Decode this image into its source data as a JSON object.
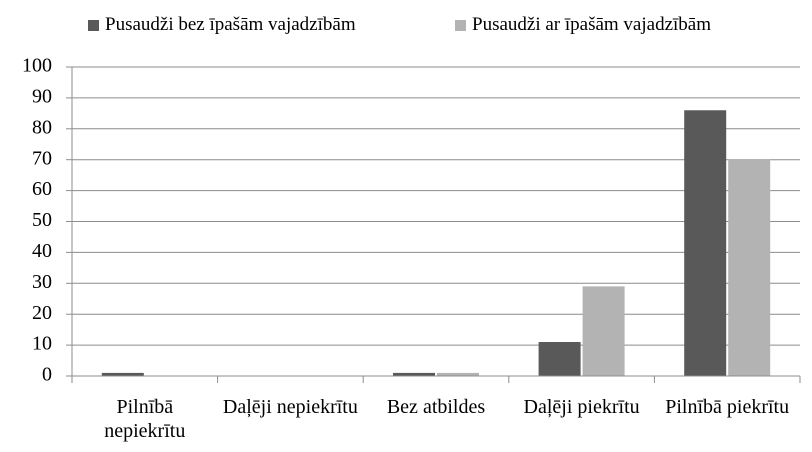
{
  "chart_data": {
    "type": "bar",
    "categories": [
      "Pilnībā nepiekrītu",
      "Daļēji nepiekrītu",
      "Bez atbildes",
      "Daļēji piekrītu",
      "Pilnībā piekrītu"
    ],
    "series": [
      {
        "name": "Pusaudži bez īpašām vajadzībām",
        "color": "#595959",
        "values": [
          1,
          0,
          1,
          11,
          86
        ]
      },
      {
        "name": "Pusaudži ar īpašām vajadzībām",
        "color": "#b3b3b3",
        "values": [
          0,
          0,
          1,
          29,
          70
        ]
      }
    ],
    "ylim": [
      0,
      100
    ],
    "yticks": [
      0,
      10,
      20,
      30,
      40,
      50,
      60,
      70,
      80,
      90,
      100
    ],
    "grid": true,
    "legend": "top"
  }
}
